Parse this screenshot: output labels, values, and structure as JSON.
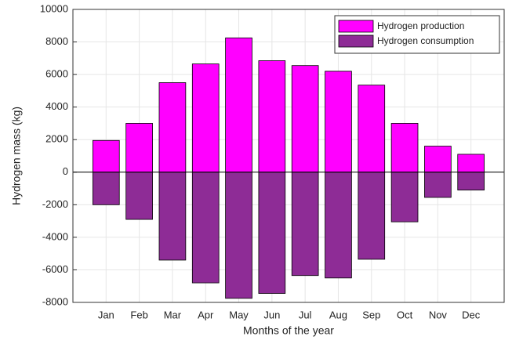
{
  "chart_data": {
    "type": "bar",
    "x_label": "Months of the year",
    "y_label": "Hydrogen mass (kg)",
    "categories": [
      "Jan",
      "Feb",
      "Mar",
      "Apr",
      "May",
      "Jun",
      "Jul",
      "Aug",
      "Sep",
      "Oct",
      "Nov",
      "Dec"
    ],
    "series": [
      {
        "name": "Hydrogen production",
        "color": "#ff00ff",
        "values": [
          1950,
          3000,
          5500,
          6650,
          8250,
          6850,
          6550,
          6200,
          5350,
          3000,
          1600,
          1100
        ]
      },
      {
        "name": "Hydrogen consumption",
        "color": "#8e2c96",
        "values": [
          -2000,
          -2900,
          -5400,
          -6800,
          -7750,
          -7450,
          -6350,
          -6500,
          -5350,
          -3050,
          -1550,
          -1100
        ]
      }
    ],
    "ylim": [
      -8000,
      10000
    ],
    "yticks": [
      -8000,
      -6000,
      -4000,
      -2000,
      0,
      2000,
      4000,
      6000,
      8000,
      10000
    ],
    "grid": true,
    "legend": "northeast"
  }
}
